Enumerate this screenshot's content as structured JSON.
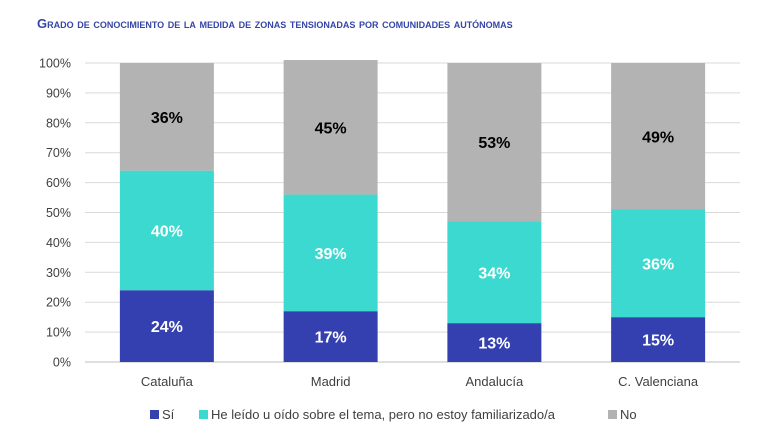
{
  "chart_data": {
    "type": "bar",
    "stacked": true,
    "title": "Grado de conocimiento de la medida de zonas tensionadas por comunidades autónomas",
    "categories": [
      "Cataluña",
      "Madrid",
      "Andalucía",
      "C. Valenciana"
    ],
    "series": [
      {
        "name": "Sí",
        "values": [
          24,
          17,
          13,
          15
        ],
        "color": "#3440b0",
        "label_color": "#ffffff"
      },
      {
        "name": "He leído u oído sobre el tema, pero no estoy familiarizado/a",
        "values": [
          40,
          39,
          34,
          36
        ],
        "color": "#3bd9cf",
        "label_color": "#ffffff"
      },
      {
        "name": "No",
        "values": [
          36,
          45,
          53,
          49
        ],
        "color": "#b3b3b3",
        "label_color": "#000000"
      }
    ],
    "ylim": [
      0,
      100
    ],
    "yticks": [
      "0%",
      "10%",
      "20%",
      "30%",
      "40%",
      "50%",
      "60%",
      "70%",
      "80%",
      "90%",
      "100%"
    ],
    "grid": true,
    "legend": "bottom",
    "title_color": "#3545a8"
  }
}
